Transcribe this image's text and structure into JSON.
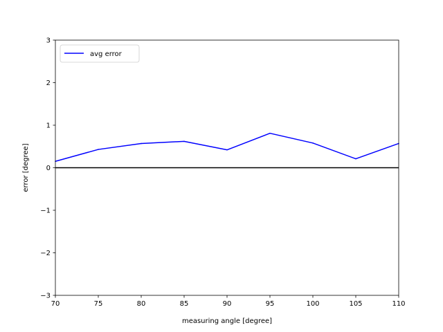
{
  "chart_data": {
    "type": "line",
    "xlabel": "measuring angle [degree]",
    "ylabel": "error [degree]",
    "xlim": [
      70,
      110
    ],
    "ylim": [
      -3,
      3
    ],
    "xticks": [
      "70",
      "75",
      "80",
      "85",
      "90",
      "95",
      "100",
      "105",
      "110"
    ],
    "yticks": [
      "−3",
      "−2",
      "−1",
      "0",
      "1",
      "2",
      "3"
    ],
    "xtick_values": [
      70,
      75,
      80,
      85,
      90,
      95,
      100,
      105,
      110
    ],
    "ytick_values": [
      -3,
      -2,
      -1,
      0,
      1,
      2,
      3
    ],
    "legend_position": "top-left",
    "grid": false,
    "reference_line": {
      "y": 0,
      "color": "#000000"
    },
    "series": [
      {
        "name": "avg error",
        "color": "#0000ff",
        "x": [
          70,
          75,
          80,
          85,
          90,
          95,
          100,
          105,
          110
        ],
        "y": [
          0.15,
          0.43,
          0.57,
          0.62,
          0.42,
          0.81,
          0.58,
          0.21,
          0.57
        ]
      }
    ]
  }
}
